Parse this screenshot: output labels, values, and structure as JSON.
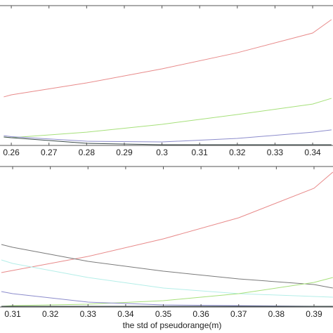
{
  "chart_data": [
    {
      "type": "line",
      "x": [
        0.258,
        0.26,
        0.28,
        0.3,
        0.32,
        0.34,
        0.345
      ],
      "xlim": [
        0.257,
        0.3454
      ],
      "ylim": [
        0,
        1
      ],
      "xticks": [
        0.26,
        0.27,
        0.28,
        0.29,
        0.3,
        0.31,
        0.32,
        0.33,
        0.34
      ],
      "grid": false,
      "series": [
        {
          "color": "#e88a8a",
          "values": [
            0.347,
            0.362,
            0.447,
            0.548,
            0.663,
            0.804,
            0.9
          ]
        },
        {
          "color": "#a6e07a",
          "values": [
            0.06,
            0.055,
            0.095,
            0.151,
            0.221,
            0.296,
            0.337
          ]
        },
        {
          "color": "#8c8ccc",
          "values": [
            0.07,
            0.063,
            0.03,
            0.025,
            0.05,
            0.095,
            0.111
          ]
        },
        {
          "color": "#3a4a4a",
          "values": [
            0.06,
            0.055,
            0.015,
            0.005,
            0.005,
            0.005,
            0.005
          ]
        }
      ]
    },
    {
      "type": "line",
      "x": [
        0.307,
        0.31,
        0.33,
        0.35,
        0.37,
        0.39,
        0.395
      ],
      "xlim": [
        0.30664,
        0.39504
      ],
      "ylim": [
        0,
        1
      ],
      "xticks": [
        0.31,
        0.32,
        0.33,
        0.34,
        0.35,
        0.36,
        0.37,
        0.38,
        0.39
      ],
      "xlabel": "the std of pseudorange(m)",
      "grid": false,
      "series": [
        {
          "color": "#e88a8a",
          "values": [
            0.245,
            0.26,
            0.36,
            0.485,
            0.635,
            0.845,
            0.96
          ]
        },
        {
          "color": "#7a7a7a",
          "values": [
            0.445,
            0.425,
            0.325,
            0.255,
            0.2,
            0.16,
            0.135
          ]
        },
        {
          "color": "#b4eee8",
          "values": [
            0.335,
            0.31,
            0.21,
            0.135,
            0.095,
            0.075,
            0.07
          ]
        },
        {
          "color": "#a6e07a",
          "values": [
            0.005,
            0.01,
            0.02,
            0.045,
            0.095,
            0.175,
            0.21
          ]
        },
        {
          "color": "#8c8ccc",
          "values": [
            0.11,
            0.095,
            0.035,
            0.015,
            0.01,
            0.005,
            0.005
          ]
        },
        {
          "color": "#3a4a4a",
          "values": [
            0.005,
            0.005,
            0.005,
            0.005,
            0.005,
            0.005,
            0.005
          ]
        }
      ]
    }
  ]
}
